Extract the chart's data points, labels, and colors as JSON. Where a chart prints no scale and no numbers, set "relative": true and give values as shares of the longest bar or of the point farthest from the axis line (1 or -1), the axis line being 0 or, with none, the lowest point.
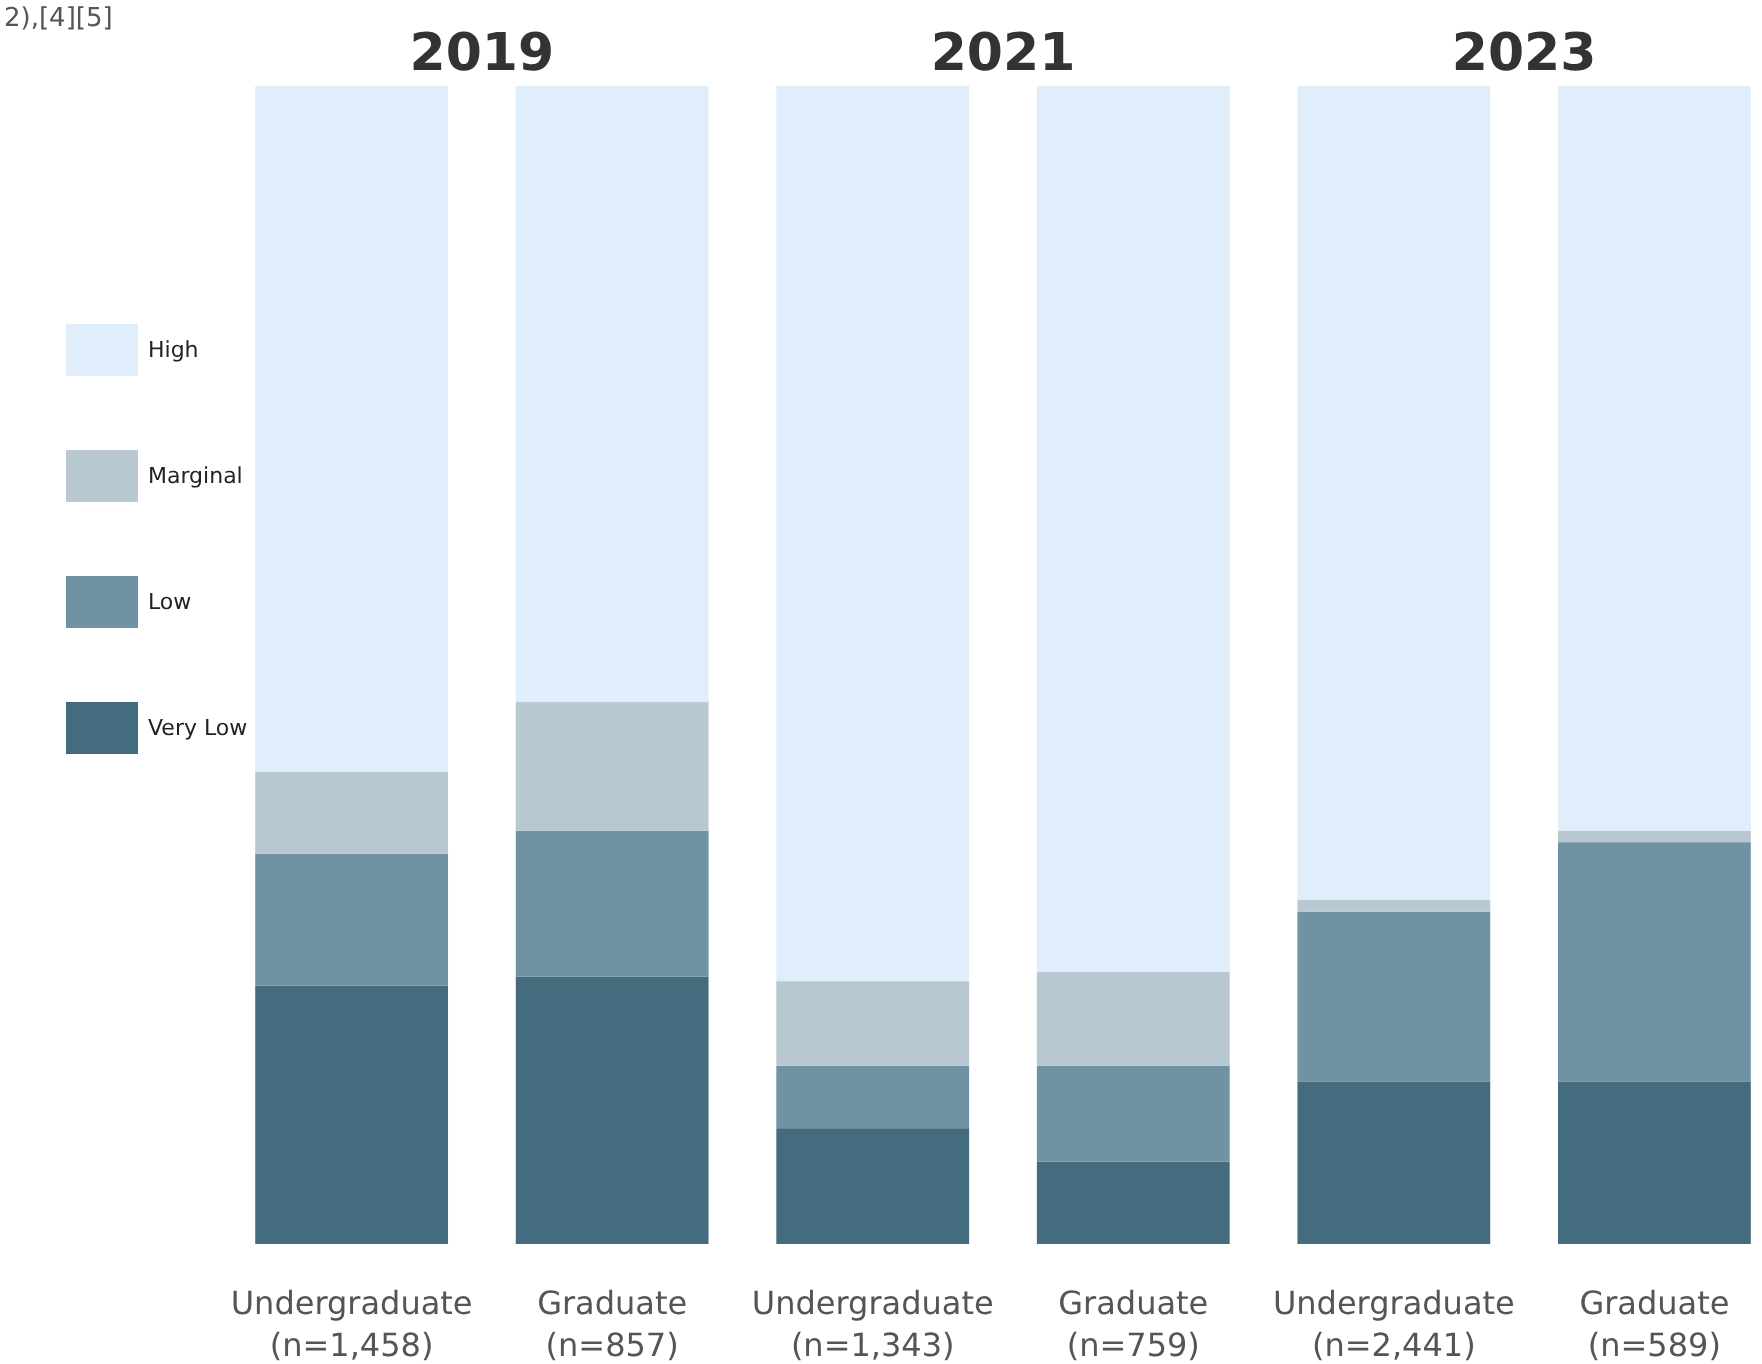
{
  "chart_data": {
    "type": "bar",
    "stacked": true,
    "relative": true,
    "legend": "left",
    "grid": false,
    "categories": [
      "Undergraduate\n(n=1,458)",
      "Graduate\n(n=857)",
      "Undergraduate\n(n=1,343)",
      "Graduate\n(n=759)",
      "Undergraduate\n(n=2,441)",
      "Graduate\n(n=589)"
    ],
    "annotations": [
      "2),[4][5]",
      "2019",
      "2021",
      "2023"
    ],
    "series": [
      {
        "name": "Very Low",
        "color": "#456b7e",
        "values": [
          0.223,
          0.231,
          0.1,
          0.071,
          0.14,
          0.14
        ]
      },
      {
        "name": "Low",
        "color": "#7093a3",
        "values": [
          0.114,
          0.126,
          0.054,
          0.083,
          0.147,
          0.207
        ]
      },
      {
        "name": "Marginal",
        "color": "#b8c8d0",
        "values": [
          0.071,
          0.111,
          0.073,
          0.081,
          0.01,
          0.01
        ]
      },
      {
        "name": "High",
        "color": "#dfeefa",
        "values": [
          0.592,
          0.532,
          0.773,
          0.765,
          0.703,
          0.643
        ]
      }
    ]
  }
}
